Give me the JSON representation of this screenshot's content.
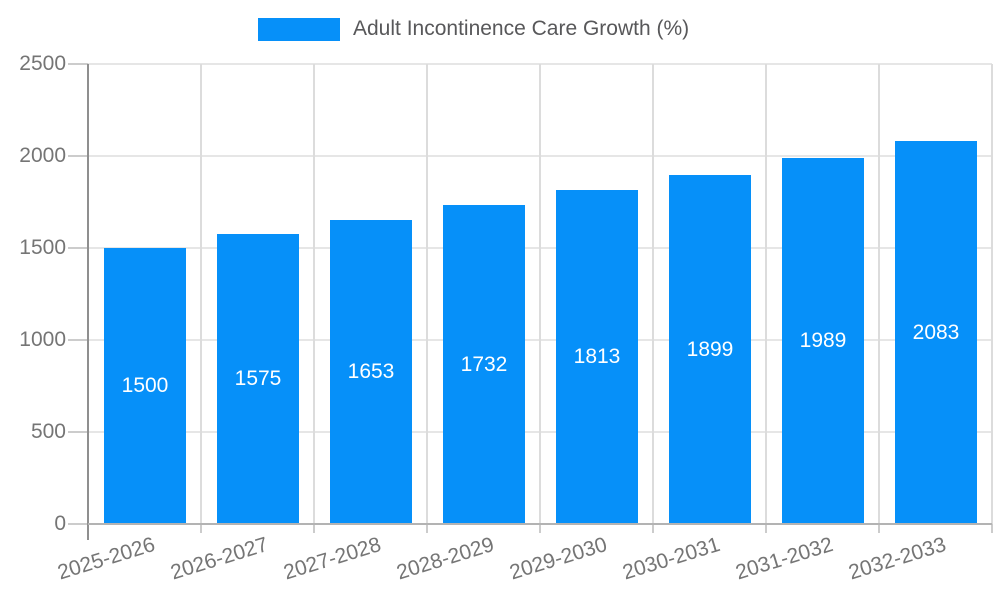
{
  "chart_data": {
    "type": "bar",
    "title": "Adult Incontinence Care Growth (%)",
    "legend_position": "top",
    "categories": [
      "2025-2026",
      "2026-2027",
      "2027-2028",
      "2028-2029",
      "2029-2030",
      "2030-2031",
      "2031-2032",
      "2032-2033"
    ],
    "values": [
      1500,
      1575,
      1653,
      1732,
      1813,
      1899,
      1989,
      2083
    ],
    "bar_value_labels": [
      "1500",
      "1575",
      "1653",
      "1732",
      "1813",
      "1899",
      "1989",
      "2083"
    ],
    "xlabel": "",
    "ylabel": "",
    "ylim": [
      0,
      2500
    ],
    "yticks": [
      0,
      500,
      1000,
      1500,
      2000,
      2500
    ],
    "grid": true,
    "colors": {
      "bar": "#0690f9",
      "value_label": "#ffffff",
      "axis_text": "#757575",
      "legend_text": "#58585a",
      "h_gridline": "#e6e6e6",
      "v_gridline": "#dcdcdc",
      "tick": "#cccccc",
      "y_axis_line": "#8f8f8f",
      "baseline": "#b3b3b3",
      "background": "#ffffff"
    }
  }
}
